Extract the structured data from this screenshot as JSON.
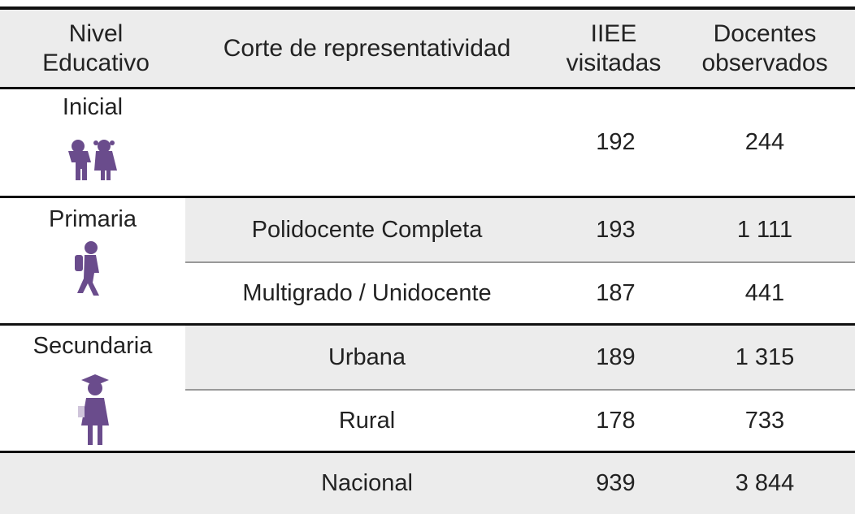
{
  "table": {
    "headers": [
      "Nivel\nEducativo",
      "Corte de representatividad",
      "IIEE\nvisitadas",
      "Docentes\nobservados"
    ],
    "groups": [
      {
        "level": "Inicial",
        "rows": [
          {
            "iiee": "192",
            "docentes": "244"
          }
        ]
      },
      {
        "level": "Primaria",
        "rows": [
          {
            "cut": "Polidocente Completa",
            "iiee": "193",
            "docentes": "1 111"
          },
          {
            "cut": "Multigrado / Unidocente",
            "iiee": "187",
            "docentes": "441"
          }
        ]
      },
      {
        "level": "Secundaria",
        "rows": [
          {
            "cut": "Urbana",
            "iiee": "189",
            "docentes": "1 315"
          },
          {
            "cut": "Rural",
            "iiee": "178",
            "docentes": "733"
          }
        ]
      }
    ],
    "total": {
      "cut": "Nacional",
      "iiee": "939",
      "docentes": "3 844"
    }
  }
}
